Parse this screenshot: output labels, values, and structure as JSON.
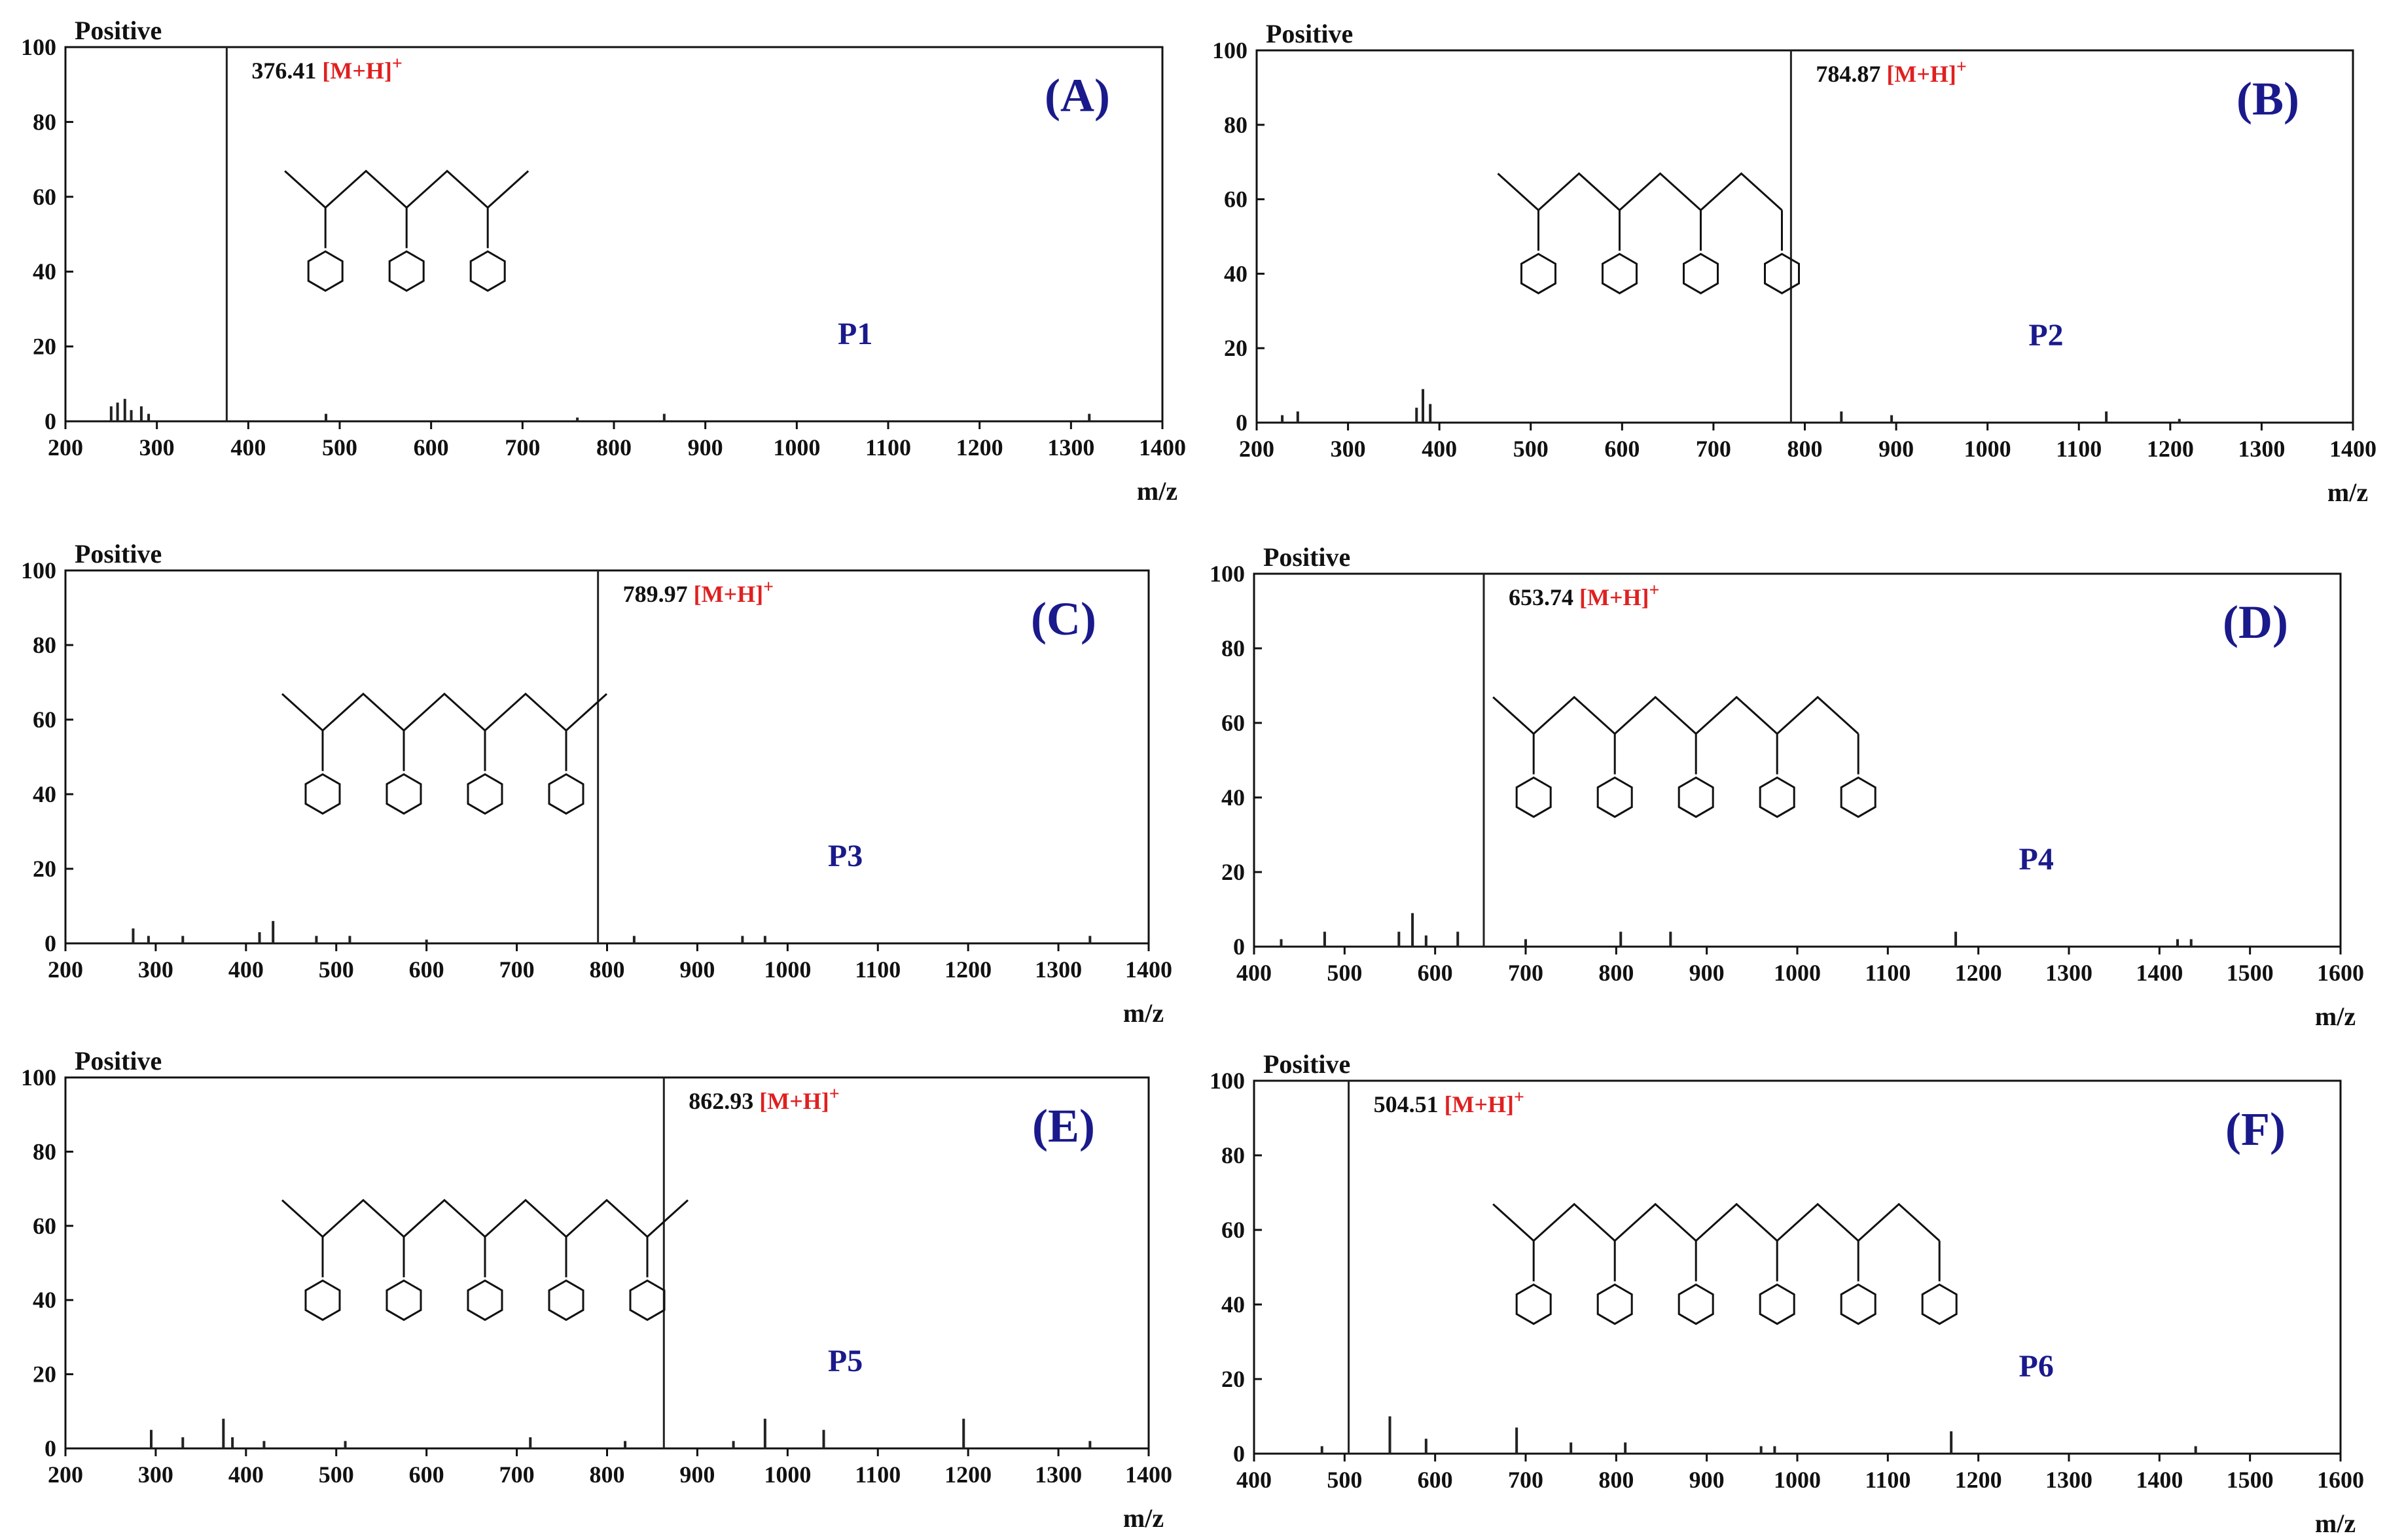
{
  "figure": {
    "axis_unit": "m/z",
    "ion_label": "[M+H]",
    "ion_charge": "+",
    "colors": {
      "ion": "#e02020",
      "peptide": "#1a1a8c",
      "panel": "#1a1a8c",
      "axis": "#111111"
    }
  },
  "chart_data": [
    {
      "panel": "(A)",
      "peptide": "P1",
      "mode": "Positive",
      "type": "bar",
      "xlabel": "m/z",
      "xlim": [
        200,
        1400
      ],
      "ylim": [
        0,
        100
      ],
      "xticks": [
        200,
        300,
        400,
        500,
        600,
        700,
        800,
        900,
        1000,
        1100,
        1200,
        1300,
        1400
      ],
      "yticks": [
        0,
        20,
        40,
        60,
        80,
        100
      ],
      "precursor": {
        "mz": 376.41,
        "label": "376.41"
      },
      "peaks": [
        [
          250,
          4
        ],
        [
          257,
          5
        ],
        [
          265,
          6
        ],
        [
          272,
          3
        ],
        [
          283,
          4
        ],
        [
          291,
          2
        ],
        [
          376.41,
          100
        ],
        [
          485,
          2
        ],
        [
          760,
          1
        ],
        [
          855,
          2
        ],
        [
          1320,
          2
        ]
      ]
    },
    {
      "panel": "(B)",
      "peptide": "P2",
      "mode": "Positive",
      "type": "bar",
      "xlabel": "m/z",
      "xlim": [
        200,
        1400
      ],
      "ylim": [
        0,
        100
      ],
      "xticks": [
        200,
        300,
        400,
        500,
        600,
        700,
        800,
        900,
        1000,
        1100,
        1200,
        1300,
        1400
      ],
      "yticks": [
        0,
        20,
        40,
        60,
        80,
        100
      ],
      "precursor": {
        "mz": 784.87,
        "label": "784.87"
      },
      "peaks": [
        [
          228,
          2
        ],
        [
          245,
          3
        ],
        [
          375,
          4
        ],
        [
          382,
          9
        ],
        [
          390,
          5
        ],
        [
          784.87,
          100
        ],
        [
          840,
          3
        ],
        [
          895,
          2
        ],
        [
          1130,
          3
        ],
        [
          1210,
          1
        ]
      ]
    },
    {
      "panel": "(C)",
      "peptide": "P3",
      "mode": "Positive",
      "type": "bar",
      "xlabel": "m/z",
      "xlim": [
        200,
        1400
      ],
      "ylim": [
        0,
        100
      ],
      "xticks": [
        200,
        300,
        400,
        500,
        600,
        700,
        800,
        900,
        1000,
        1100,
        1200,
        1300,
        1400
      ],
      "yticks": [
        0,
        20,
        40,
        60,
        80,
        100
      ],
      "precursor": {
        "mz": 789.97,
        "label": "789.97"
      },
      "peaks": [
        [
          275,
          4
        ],
        [
          292,
          2
        ],
        [
          330,
          2
        ],
        [
          415,
          3
        ],
        [
          430,
          6
        ],
        [
          478,
          2
        ],
        [
          515,
          2
        ],
        [
          600,
          1
        ],
        [
          789.97,
          100
        ],
        [
          830,
          2
        ],
        [
          950,
          2
        ],
        [
          975,
          2
        ],
        [
          1335,
          2
        ]
      ]
    },
    {
      "panel": "(D)",
      "peptide": "P4",
      "mode": "Positive",
      "type": "bar",
      "xlabel": "m/z",
      "xlim": [
        400,
        1600
      ],
      "ylim": [
        0,
        100
      ],
      "xticks": [
        400,
        500,
        600,
        700,
        800,
        900,
        1000,
        1100,
        1200,
        1300,
        1400,
        1500,
        1600
      ],
      "yticks": [
        0,
        20,
        40,
        60,
        80,
        100
      ],
      "precursor": {
        "mz": 653.74,
        "label": "653.74"
      },
      "peaks": [
        [
          430,
          2
        ],
        [
          478,
          4
        ],
        [
          560,
          4
        ],
        [
          575,
          9
        ],
        [
          590,
          3
        ],
        [
          625,
          4
        ],
        [
          653.74,
          100
        ],
        [
          700,
          2
        ],
        [
          805,
          4
        ],
        [
          860,
          4
        ],
        [
          1175,
          4
        ],
        [
          1420,
          2
        ],
        [
          1435,
          2
        ]
      ]
    },
    {
      "panel": "(E)",
      "peptide": "P5",
      "mode": "Positive",
      "type": "bar",
      "xlabel": "m/z",
      "xlim": [
        200,
        1400
      ],
      "ylim": [
        0,
        100
      ],
      "xticks": [
        200,
        300,
        400,
        500,
        600,
        700,
        800,
        900,
        1000,
        1100,
        1200,
        1300,
        1400
      ],
      "yticks": [
        0,
        20,
        40,
        60,
        80,
        100
      ],
      "precursor": {
        "mz": 862.93,
        "label": "862.93"
      },
      "peaks": [
        [
          295,
          5
        ],
        [
          330,
          3
        ],
        [
          375,
          8
        ],
        [
          385,
          3
        ],
        [
          420,
          2
        ],
        [
          510,
          2
        ],
        [
          715,
          3
        ],
        [
          820,
          2
        ],
        [
          862.93,
          100
        ],
        [
          940,
          2
        ],
        [
          975,
          8
        ],
        [
          1040,
          5
        ],
        [
          1195,
          8
        ],
        [
          1335,
          2
        ]
      ]
    },
    {
      "panel": "(F)",
      "peptide": "P6",
      "mode": "Positive",
      "type": "bar",
      "xlabel": "m/z",
      "xlim": [
        400,
        1600
      ],
      "ylim": [
        0,
        100
      ],
      "xticks": [
        400,
        500,
        600,
        700,
        800,
        900,
        1000,
        1100,
        1200,
        1300,
        1400,
        1500,
        1600
      ],
      "yticks": [
        0,
        20,
        40,
        60,
        80,
        100
      ],
      "precursor": {
        "mz": 504.51,
        "label": "504.51"
      },
      "peaks": [
        [
          475,
          2
        ],
        [
          504.51,
          100
        ],
        [
          550,
          10
        ],
        [
          590,
          4
        ],
        [
          690,
          7
        ],
        [
          750,
          3
        ],
        [
          810,
          3
        ],
        [
          960,
          2
        ],
        [
          975,
          2
        ],
        [
          1170,
          6
        ],
        [
          1440,
          2
        ]
      ]
    }
  ]
}
